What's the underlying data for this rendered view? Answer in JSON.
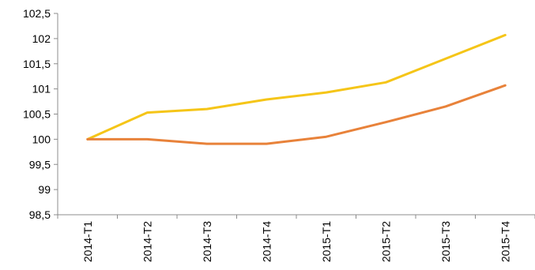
{
  "chart_data": {
    "type": "line",
    "categories": [
      "2014-T1",
      "2014-T2",
      "2014-T3",
      "2014-T4",
      "2015-T1",
      "2015-T2",
      "2015-T3",
      "2015-T4"
    ],
    "series": [
      {
        "color": "#F5C518",
        "values": [
          100,
          100.53,
          100.6,
          100.79,
          100.93,
          101.13,
          101.6,
          102.07
        ]
      },
      {
        "color": "#E8823A",
        "values": [
          100,
          100,
          99.91,
          99.91,
          100.05,
          100.34,
          100.65,
          101.07
        ]
      }
    ],
    "ylim": [
      98.5,
      102.5
    ],
    "yticks": [
      "98,5",
      "99",
      "99,5",
      "100",
      "100,5",
      "101",
      "101,5",
      "102",
      "102,5"
    ],
    "title": "",
    "xlabel": "",
    "ylabel": "",
    "grid": false,
    "legend": "none"
  }
}
